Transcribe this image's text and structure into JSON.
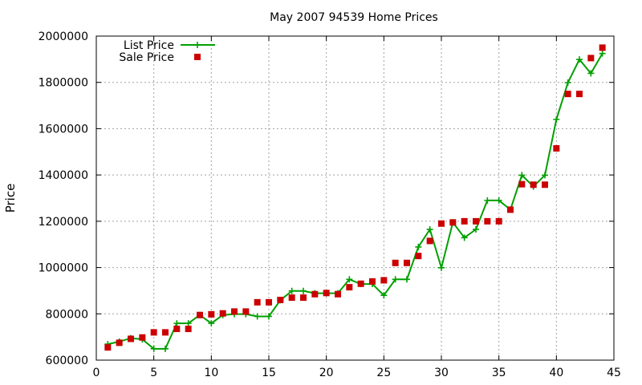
{
  "chart_data": {
    "type": "line",
    "title": "May 2007 94539 Home Prices",
    "xlabel": "",
    "ylabel": "Price",
    "xlim": [
      0,
      45
    ],
    "ylim": [
      600000,
      2000000
    ],
    "xticks": [
      0,
      5,
      10,
      15,
      20,
      25,
      30,
      35,
      40,
      45
    ],
    "yticks": [
      600000,
      800000,
      1000000,
      1200000,
      1400000,
      1600000,
      1800000,
      2000000
    ],
    "grid": true,
    "legend_position": "top-left",
    "series": [
      {
        "name": "List Price",
        "style": "line-plus",
        "color": "#00a000",
        "x": [
          1,
          2,
          3,
          4,
          5,
          6,
          7,
          8,
          9,
          10,
          11,
          12,
          13,
          14,
          15,
          16,
          17,
          18,
          19,
          20,
          21,
          22,
          23,
          24,
          25,
          26,
          27,
          28,
          29,
          30,
          31,
          32,
          33,
          34,
          35,
          36,
          37,
          38,
          39,
          40,
          41,
          42,
          43,
          44
        ],
        "y": [
          669000,
          680000,
          695000,
          690000,
          649000,
          649000,
          759000,
          759000,
          795000,
          759000,
          795000,
          799000,
          799000,
          789000,
          789000,
          859000,
          899000,
          899000,
          889000,
          889000,
          889000,
          949000,
          929000,
          929000,
          880000,
          949000,
          949000,
          1089000,
          1165000,
          999000,
          1195000,
          1129000,
          1165000,
          1290000,
          1290000,
          1250000,
          1399000,
          1350000,
          1399000,
          1640000,
          1799000,
          1899000,
          1839000,
          1925000
        ]
      },
      {
        "name": "Sale Price",
        "style": "square",
        "color": "#cc0000",
        "x": [
          1,
          2,
          3,
          4,
          5,
          6,
          7,
          8,
          9,
          10,
          11,
          12,
          13,
          14,
          15,
          16,
          17,
          18,
          19,
          20,
          21,
          22,
          23,
          24,
          25,
          26,
          27,
          28,
          29,
          30,
          31,
          32,
          33,
          34,
          35,
          36,
          37,
          38,
          39,
          40,
          41,
          42,
          43,
          44
        ],
        "y": [
          655000,
          675000,
          692000,
          698000,
          720000,
          720000,
          735000,
          735000,
          795000,
          798000,
          802000,
          810000,
          810000,
          850000,
          850000,
          860000,
          870000,
          870000,
          885000,
          890000,
          885000,
          915000,
          930000,
          940000,
          945000,
          1020000,
          1020000,
          1050000,
          1115000,
          1190000,
          1195000,
          1200000,
          1200000,
          1200000,
          1200000,
          1250000,
          1360000,
          1358000,
          1358000,
          1515000,
          1750000,
          1750000,
          1905000,
          1950000
        ]
      }
    ]
  },
  "colors": {
    "grid": "#a0a0a0",
    "axis": "#000000"
  }
}
